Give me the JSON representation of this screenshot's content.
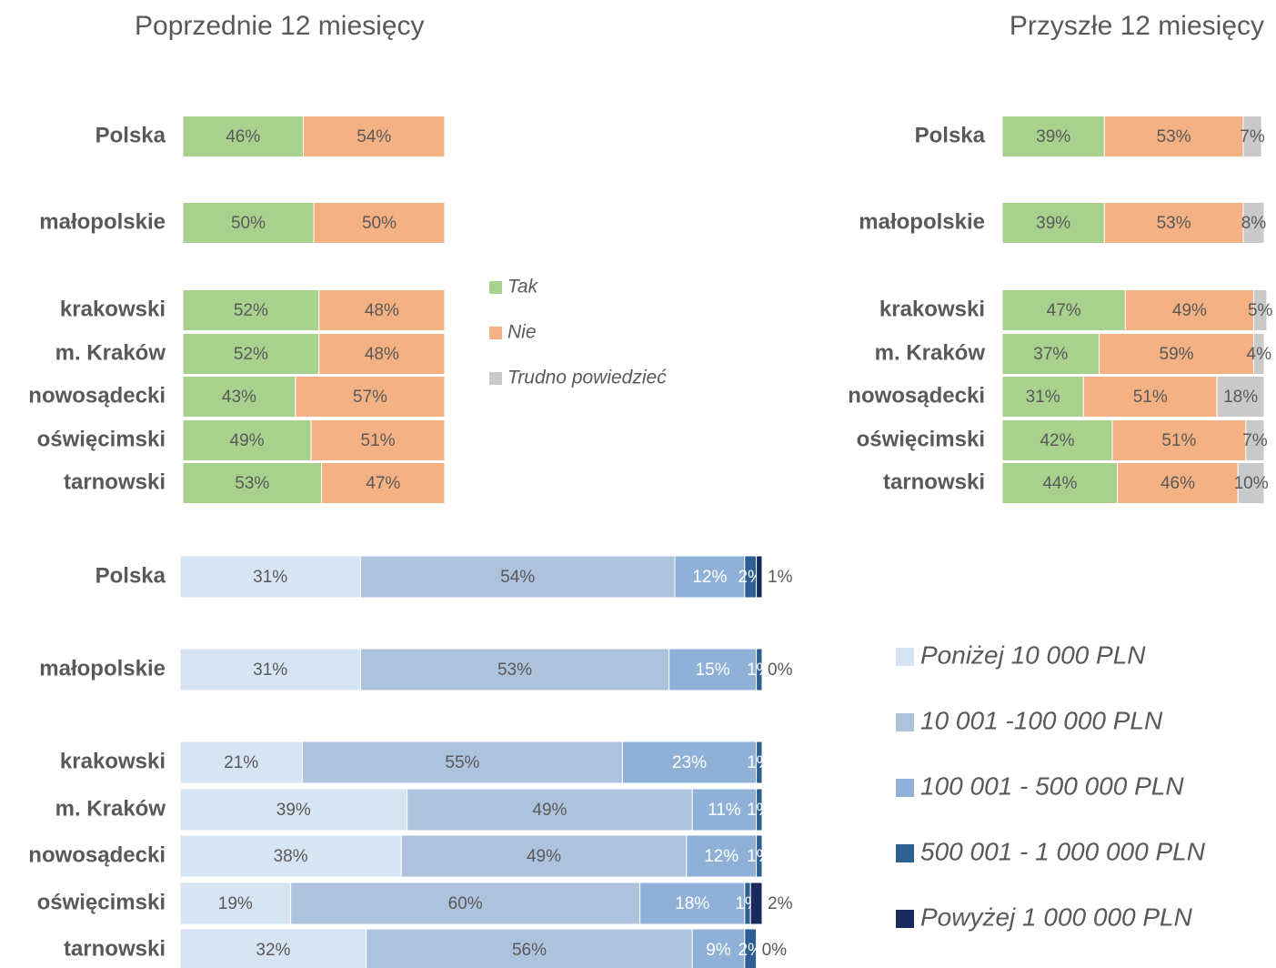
{
  "chart_data": [
    {
      "type": "bar",
      "orientation": "horizontal",
      "stacked": true,
      "title": "Poprzednie 12 miesięcy",
      "categories": [
        "Polska",
        "małopolskie",
        "krakowski",
        "m. Kraków",
        "nowosądecki",
        "oświęcimski",
        "tarnowski"
      ],
      "xlim": [
        0,
        100
      ],
      "series": [
        {
          "color": "#a9d18e",
          "values": [
            46,
            50,
            52,
            52,
            43,
            49,
            53
          ],
          "value_labels": [
            "46%",
            "50%",
            "52%",
            "52%",
            "43%",
            "49%",
            "53%"
          ]
        },
        {
          "color": "#f4b183",
          "values": [
            54,
            50,
            48,
            48,
            57,
            51,
            47
          ],
          "value_labels": [
            "54%",
            "50%",
            "48%",
            "48%",
            "57%",
            "51%",
            "47%"
          ]
        }
      ]
    },
    {
      "type": "bar",
      "orientation": "horizontal",
      "stacked": true,
      "title": "Przyszłe 12 miesięcy",
      "categories": [
        "Polska",
        "małopolskie",
        "krakowski",
        "m. Kraków",
        "nowosądecki",
        "oświęcimski",
        "tarnowski"
      ],
      "xlim": [
        0,
        100
      ],
      "series": [
        {
          "name": "Tak",
          "color": "#a9d18e",
          "values": [
            39,
            39,
            47,
            37,
            31,
            42,
            44
          ],
          "value_labels": [
            "39%",
            "39%",
            "47%",
            "37%",
            "31%",
            "42%",
            "44%"
          ]
        },
        {
          "name": "Nie",
          "color": "#f4b183",
          "values": [
            53,
            53,
            49,
            59,
            51,
            51,
            46
          ],
          "value_labels": [
            "53%",
            "53%",
            "49%",
            "59%",
            "51%",
            "51%",
            "46%"
          ]
        },
        {
          "name": "Trudno powiedzieć",
          "color": "#c9c9c9",
          "values": [
            7,
            8,
            5,
            4,
            18,
            7,
            10
          ],
          "value_labels": [
            "7%",
            "8%",
            "5%",
            "4%",
            "18%",
            "7%",
            "10%"
          ]
        }
      ]
    },
    {
      "type": "bar",
      "orientation": "horizontal",
      "stacked": true,
      "categories": [
        "Polska",
        "małopolskie",
        "krakowski",
        "m. Kraków",
        "nowosądecki",
        "oświęcimski",
        "tarnowski"
      ],
      "xlim": [
        0,
        100
      ],
      "series": [
        {
          "name": "Poniżej 10 000 PLN",
          "color": "#d6e4f3",
          "values": [
            31,
            31,
            21,
            39,
            38,
            19,
            32
          ],
          "value_labels": [
            "31%",
            "31%",
            "21%",
            "39%",
            "38%",
            "19%",
            "32%"
          ]
        },
        {
          "name": "10 001 -100 000 PLN",
          "color": "#adc2dc",
          "values": [
            54,
            53,
            55,
            49,
            49,
            60,
            56
          ],
          "value_labels": [
            "54%",
            "53%",
            "55%",
            "49%",
            "49%",
            "60%",
            "56%"
          ]
        },
        {
          "name": "100 001 - 500 000 PLN",
          "color": "#8fb1d8",
          "values": [
            12,
            15,
            23,
            11,
            12,
            18,
            9
          ],
          "value_labels": [
            "12%",
            "15%",
            "23%",
            "11%",
            "12%",
            "18%",
            "9%"
          ]
        },
        {
          "name": "500 001 - 1 000 000 PLN",
          "color": "#2e5f92",
          "values": [
            2,
            1,
            1,
            1,
            1,
            1,
            2
          ],
          "value_labels": [
            "2%",
            "1%",
            "1%",
            "1%",
            "1%",
            "1%",
            "2%"
          ]
        },
        {
          "name": "Powyżej 1 000 000 PLN",
          "color": "#1a2a5c",
          "values": [
            1,
            0,
            null,
            null,
            null,
            2,
            0
          ],
          "value_labels": [
            "1%",
            "0%",
            null,
            null,
            null,
            "2%",
            "0%"
          ]
        }
      ]
    }
  ]
}
